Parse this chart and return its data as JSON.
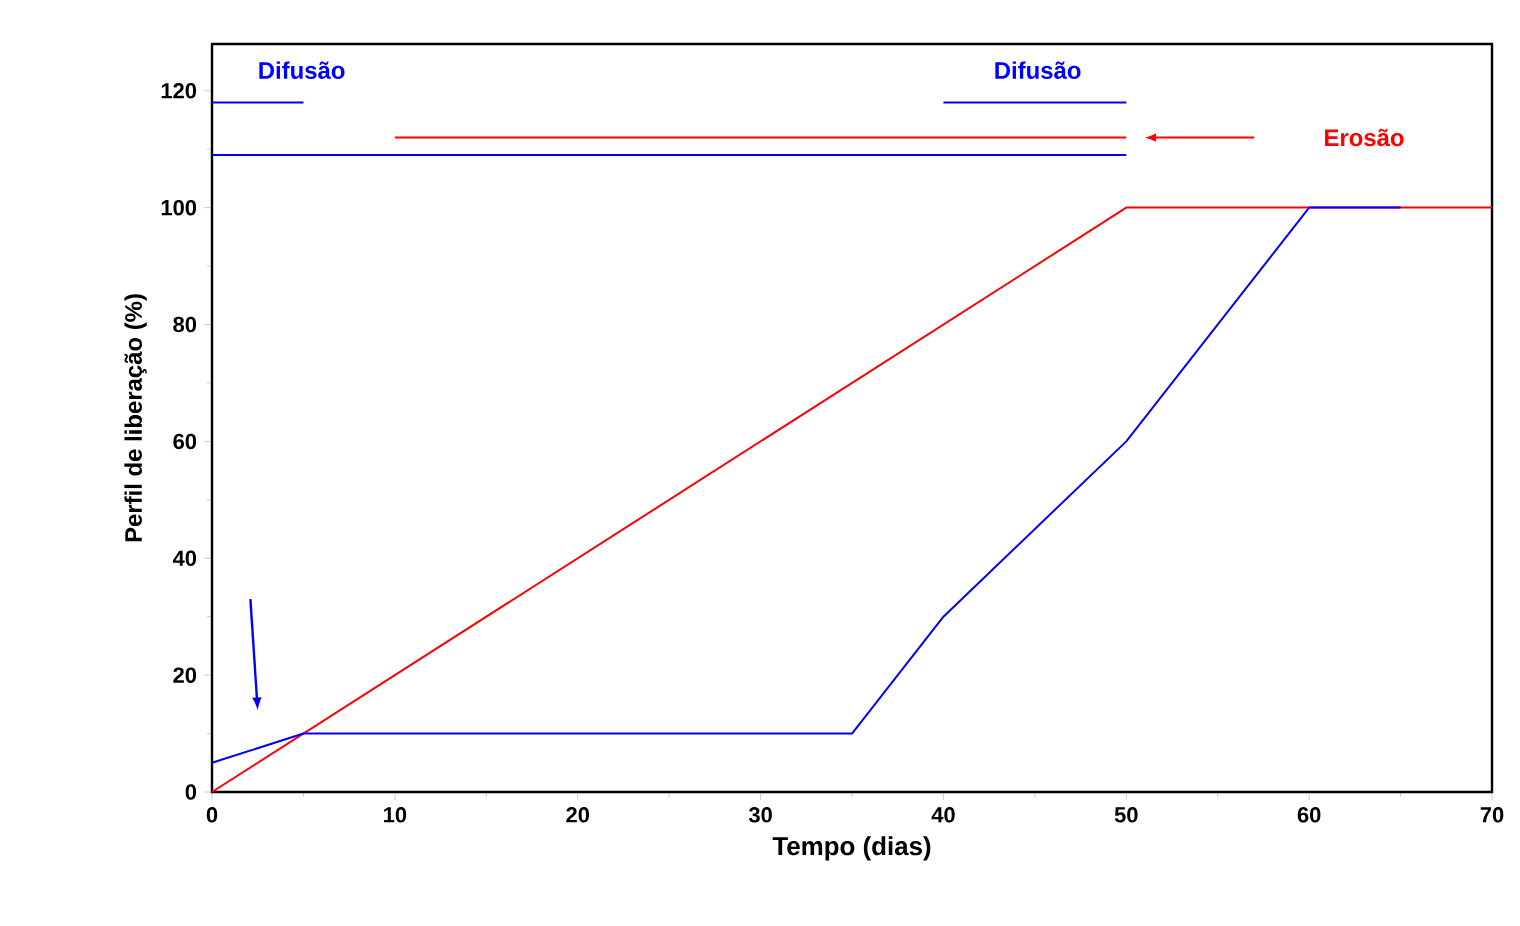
{
  "chart_data": {
    "type": "line",
    "xlabel": "Tempo (dias)",
    "ylabel": "Perfil de liberação (%)",
    "xlim": [
      0,
      70
    ],
    "ylim": [
      0,
      128
    ],
    "xticks": [
      0,
      10,
      20,
      30,
      40,
      50,
      60,
      70
    ],
    "yticks": [
      0,
      20,
      40,
      60,
      80,
      100,
      120
    ],
    "marker": "none",
    "line_style": "solid",
    "series": [
      {
        "color": "#0000ff",
        "x": [
          0,
          5,
          35,
          40,
          50,
          60,
          65
        ],
        "values": [
          5,
          10,
          10,
          30,
          60,
          100,
          100
        ]
      },
      {
        "color": "#ff0000",
        "x": [
          0,
          50,
          70
        ],
        "values": [
          0,
          100,
          100
        ]
      },
      {
        "color": "#0000ff",
        "x": [
          0,
          5
        ],
        "values": [
          118,
          118
        ]
      },
      {
        "color": "#0000ff",
        "x": [
          40,
          50
        ],
        "values": [
          118,
          118
        ]
      },
      {
        "color": "#0000ff",
        "x": [
          0,
          50
        ],
        "values": [
          109,
          109
        ]
      },
      {
        "color": "#ff0000",
        "x": [
          10,
          50
        ],
        "values": [
          112,
          112
        ]
      }
    ],
    "annotations": [
      "Difusão",
      "Difusão",
      "Erosão"
    ]
  }
}
